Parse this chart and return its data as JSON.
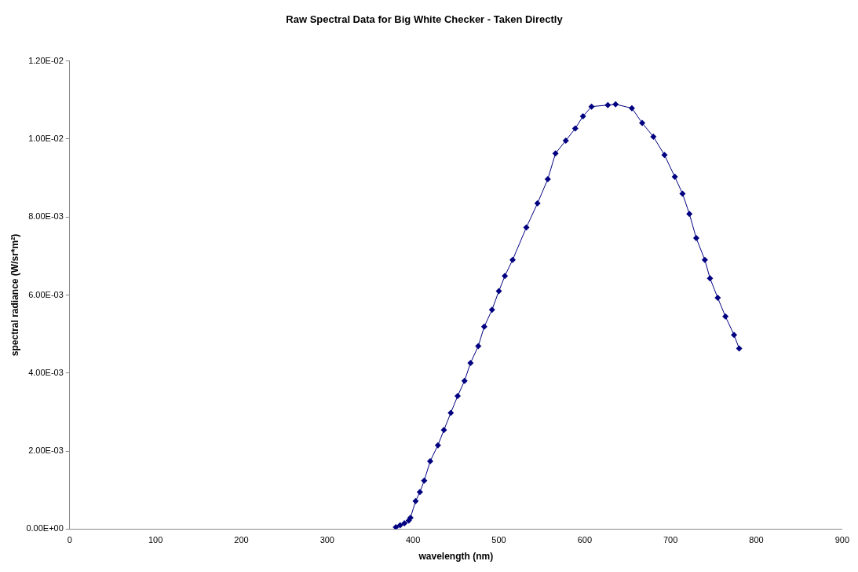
{
  "chart_data": {
    "type": "line",
    "title": "Raw Spectral Data for Big White Checker - Taken Directly",
    "xlabel": "wavelength (nm)",
    "ylabel": "spectral radiance (W/sr*m²)",
    "x": [
      380,
      385,
      390,
      395,
      397,
      403,
      408,
      413,
      420,
      429,
      436,
      444,
      452,
      460,
      467,
      476,
      483,
      492,
      500,
      507,
      516,
      532,
      545,
      557,
      566,
      578,
      589,
      598,
      608,
      627,
      636,
      655,
      667,
      680,
      693,
      705,
      714,
      722,
      730,
      740,
      746,
      755,
      764,
      774,
      780
    ],
    "series": [
      {
        "color": "#000080",
        "values": [
          5e-05,
          0.0001,
          0.00015,
          0.00022,
          0.00029,
          0.00072,
          0.00095,
          0.00124,
          0.00174,
          0.00215,
          0.00254,
          0.00298,
          0.00341,
          0.0038,
          0.00426,
          0.00469,
          0.00519,
          0.00562,
          0.0061,
          0.00649,
          0.0069,
          0.00773,
          0.00835,
          0.00897,
          0.00963,
          0.00996,
          0.01027,
          0.01058,
          0.01083,
          0.01087,
          0.01089,
          0.01079,
          0.01041,
          0.01006,
          0.00959,
          0.00903,
          0.0086,
          0.00808,
          0.00746,
          0.0069,
          0.00643,
          0.00593,
          0.00545,
          0.00498,
          0.00463
        ]
      }
    ],
    "xlim": [
      0,
      900
    ],
    "xticks": [
      0,
      100,
      200,
      300,
      400,
      500,
      600,
      700,
      800,
      900
    ],
    "ylim": [
      0,
      0.012
    ],
    "yticks": [
      {
        "value": 0,
        "label": "0.00E+00"
      },
      {
        "value": 0.002,
        "label": "2.00E-03"
      },
      {
        "value": 0.004,
        "label": "4.00E-03"
      },
      {
        "value": 0.006,
        "label": "6.00E-03"
      },
      {
        "value": 0.008,
        "label": "8.00E-03"
      },
      {
        "value": 0.01,
        "label": "1.00E-02"
      },
      {
        "value": 0.012,
        "label": "1.20E-02"
      }
    ],
    "grid": false,
    "legend": false,
    "marker": "diamond",
    "line_style": "solid"
  }
}
